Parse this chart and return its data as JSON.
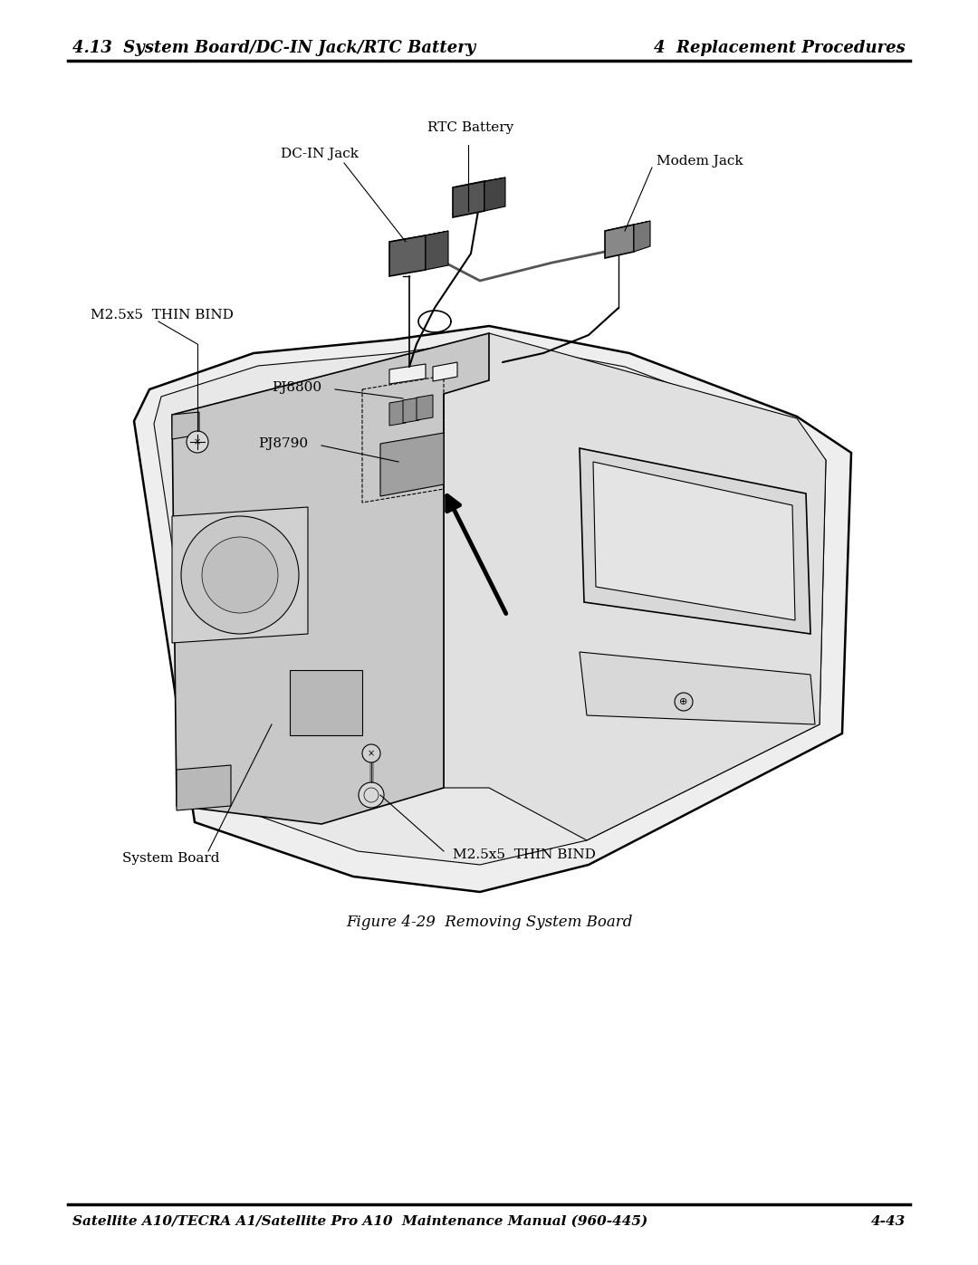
{
  "page_bg": "#ffffff",
  "header_left": "4.13  System Board/DC-IN Jack/RTC Battery",
  "header_right": "4  Replacement Procedures",
  "footer_left": "Satellite A10/TECRA A1/Satellite Pro A10  Maintenance Manual (960-445)",
  "footer_right": "4-43",
  "figure_caption": "Figure 4-29  Removing System Board",
  "header_fontsize": 13,
  "footer_fontsize": 11,
  "label_fontsize": 11,
  "caption_fontsize": 12,
  "black": "#000000",
  "gray_chassis": "#e8e8e8",
  "gray_board": "#c0c0c0",
  "gray_mid": "#d4d4d4",
  "gray_dark": "#a8a8a8"
}
